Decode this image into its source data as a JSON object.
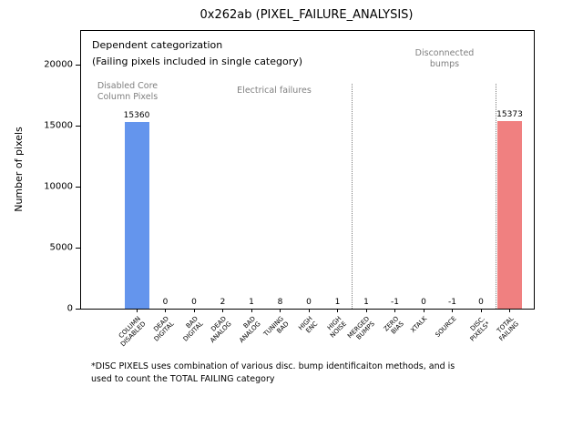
{
  "title": "0x262ab (PIXEL_FAILURE_ANALYSIS)",
  "ylabel": "Number of pixels",
  "annotations": {
    "dependent_line1": "Dependent categorization",
    "dependent_line2": "(Failing pixels included in single category)",
    "section_disabled": "Disabled Core\nColumn Pixels",
    "section_electrical": "Electrical failures",
    "section_disconnected": "Disconnected\nbumps"
  },
  "footnote": "*DISC PIXELS uses combination of various disc. bump identificaiton methods, and is\nused to count the TOTAL FAILING category",
  "colors": {
    "bar_blue": "#6495ed",
    "bar_red": "#f08080",
    "annotation_gray": "#7f7f7f"
  },
  "chart_data": {
    "type": "bar",
    "title": "0x262ab (PIXEL_FAILURE_ANALYSIS)",
    "xlabel": "",
    "ylabel": "Number of pixels",
    "categories": [
      "COLUMN\nDISABLED",
      "DEAD\nDIGITAL",
      "BAD\nDIGITAL",
      "DEAD\nANALOG",
      "BAD\nANALOG",
      "TUNING\nBAD",
      "HIGH\nENC",
      "HIGH\nNOISE",
      "MERGED\nBUMPS",
      "ZERO\nBIAS",
      "XTALK",
      "SOURCE",
      "DISC.\nPIXELS*",
      "TOTAL\nFAILING"
    ],
    "values": [
      15360,
      0,
      0,
      2,
      1,
      8,
      0,
      1,
      1,
      -1,
      0,
      -1,
      0,
      15373
    ],
    "bar_colors": [
      "#6495ed",
      "#6495ed",
      "#6495ed",
      "#6495ed",
      "#6495ed",
      "#6495ed",
      "#6495ed",
      "#6495ed",
      "#6495ed",
      "#6495ed",
      "#6495ed",
      "#6495ed",
      "#6495ed",
      "#f08080"
    ],
    "yticks": [
      0,
      5000,
      10000,
      15000,
      20000
    ],
    "ylim": [
      0,
      22800
    ],
    "separators_after_index": [
      7,
      12
    ],
    "grid": false,
    "legend": "none"
  }
}
